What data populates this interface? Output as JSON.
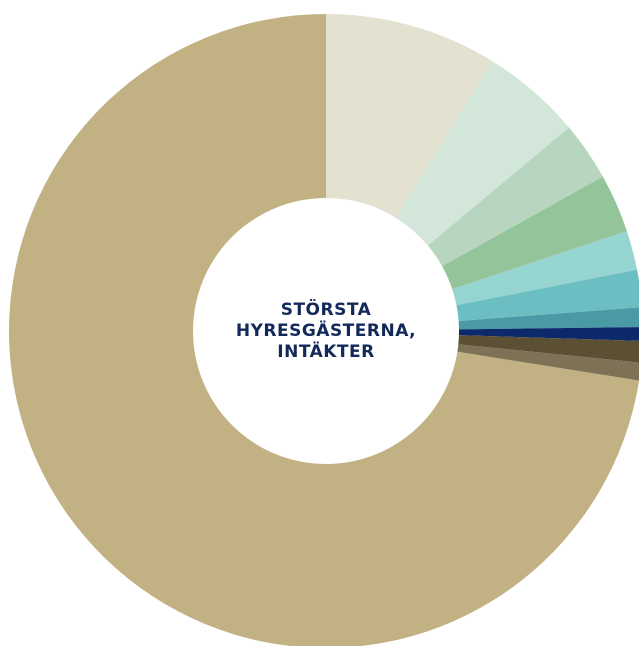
{
  "chart_data": {
    "type": "donut",
    "title": [
      "STÖRSTA",
      "HYRESGÄSTERNA,",
      "INTÄKTER"
    ],
    "values": [
      8.8,
      5.1,
      3.0,
      3.0,
      2.0,
      1.9,
      1.0,
      0.7,
      1.1,
      0.9,
      72.5
    ],
    "colors": [
      "#e3e1d0",
      "#d3e6da",
      "#b8d6bf",
      "#93c49a",
      "#96d4d0",
      "#6bbfc3",
      "#4a9aa5",
      "#0c2a6b",
      "#5c5034",
      "#7e7256",
      "#c2b283"
    ]
  }
}
